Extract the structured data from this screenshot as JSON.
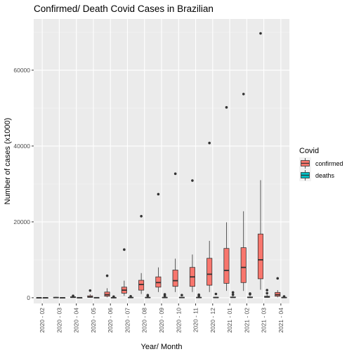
{
  "chart_data": {
    "type": "boxplot",
    "title": "Confirmed/ Death Covid Cases in Brazilian",
    "xlabel": "Year/ Month",
    "ylabel": "Number of cases (x1000)",
    "ylim": [
      -1500,
      73500
    ],
    "yticks": [
      0,
      20000,
      40000,
      60000
    ],
    "grid": true,
    "legend": {
      "title": "Covid",
      "position": "right",
      "entries": [
        {
          "name": "confirmed",
          "color": "#F8766D"
        },
        {
          "name": "deaths",
          "color": "#00BFC4"
        }
      ]
    },
    "categories": [
      "2020 - 02",
      "2020 - 03",
      "2020 - 04",
      "2020 - 05",
      "2020 - 06",
      "2020 - 07",
      "2020 - 08",
      "2020 - 09",
      "2020 - 10",
      "2020 - 11",
      "2020 - 12",
      "2021 - 01",
      "2021 - 02",
      "2021 - 03",
      "2021 - 04"
    ],
    "series": [
      {
        "name": "confirmed",
        "color": "#F8766D",
        "boxes": [
          {
            "min": 0,
            "q1": 0,
            "median": 0,
            "q3": 0,
            "max": 0,
            "outliers": []
          },
          {
            "min": 0,
            "q1": 20,
            "median": 50,
            "q3": 100,
            "max": 250,
            "outliers": []
          },
          {
            "min": 0,
            "q1": 50,
            "median": 120,
            "q3": 250,
            "max": 500,
            "outliers": [
              500
            ]
          },
          {
            "min": 0,
            "q1": 100,
            "median": 200,
            "q3": 500,
            "max": 900,
            "outliers": [
              1900
            ]
          },
          {
            "min": 100,
            "q1": 400,
            "median": 800,
            "q3": 1500,
            "max": 2500,
            "outliers": [
              5800
            ]
          },
          {
            "min": 500,
            "q1": 1200,
            "median": 2000,
            "q3": 2800,
            "max": 4500,
            "outliers": [
              12700
            ]
          },
          {
            "min": 1000,
            "q1": 2000,
            "median": 3500,
            "q3": 4600,
            "max": 6500,
            "outliers": [
              21500
            ]
          },
          {
            "min": 1500,
            "q1": 2800,
            "median": 4000,
            "q3": 5500,
            "max": 8000,
            "outliers": [
              27300
            ]
          },
          {
            "min": 1500,
            "q1": 3000,
            "median": 4500,
            "q3": 7300,
            "max": 10300,
            "outliers": [
              32700
            ]
          },
          {
            "min": 1500,
            "q1": 3000,
            "median": 5500,
            "q3": 8000,
            "max": 11400,
            "outliers": [
              30900
            ]
          },
          {
            "min": 1500,
            "q1": 3300,
            "median": 6200,
            "q3": 10400,
            "max": 15000,
            "outliers": [
              40800
            ]
          },
          {
            "min": 1800,
            "q1": 3800,
            "median": 7200,
            "q3": 13000,
            "max": 19900,
            "outliers": [
              50200
            ]
          },
          {
            "min": 1800,
            "q1": 4000,
            "median": 8000,
            "q3": 13200,
            "max": 22800,
            "outliers": [
              53700
            ]
          },
          {
            "min": 2100,
            "q1": 5000,
            "median": 10000,
            "q3": 16800,
            "max": 31000,
            "outliers": [
              69700
            ]
          },
          {
            "min": 100,
            "q1": 400,
            "median": 800,
            "q3": 1400,
            "max": 2000,
            "outliers": [
              5100
            ]
          }
        ]
      },
      {
        "name": "deaths",
        "color": "#00BFC4",
        "boxes": [
          {
            "min": 0,
            "q1": 0,
            "median": 0,
            "q3": 0,
            "max": 0,
            "outliers": []
          },
          {
            "min": 0,
            "q1": 0,
            "median": 0,
            "q3": 10,
            "max": 20,
            "outliers": []
          },
          {
            "min": 0,
            "q1": 0,
            "median": 10,
            "q3": 20,
            "max": 40,
            "outliers": []
          },
          {
            "min": 0,
            "q1": 10,
            "median": 20,
            "q3": 30,
            "max": 60,
            "outliers": []
          },
          {
            "min": 0,
            "q1": 10,
            "median": 20,
            "q3": 50,
            "max": 100,
            "outliers": [
              300
            ]
          },
          {
            "min": 0,
            "q1": 20,
            "median": 50,
            "q3": 100,
            "max": 200,
            "outliers": [
              400
            ]
          },
          {
            "min": 0,
            "q1": 30,
            "median": 60,
            "q3": 100,
            "max": 200,
            "outliers": [
              500,
              700
            ]
          },
          {
            "min": 0,
            "q1": 30,
            "median": 60,
            "q3": 100,
            "max": 200,
            "outliers": [
              500,
              900
            ]
          },
          {
            "min": 0,
            "q1": 30,
            "median": 60,
            "q3": 100,
            "max": 200,
            "outliers": [
              700
            ]
          },
          {
            "min": 0,
            "q1": 30,
            "median": 60,
            "q3": 100,
            "max": 200,
            "outliers": [
              500,
              800
            ]
          },
          {
            "min": 0,
            "q1": 30,
            "median": 60,
            "q3": 120,
            "max": 250,
            "outliers": [
              1000
            ]
          },
          {
            "min": 0,
            "q1": 50,
            "median": 100,
            "q3": 200,
            "max": 400,
            "outliers": [
              800,
              1400
            ]
          },
          {
            "min": 0,
            "q1": 50,
            "median": 100,
            "q3": 200,
            "max": 400,
            "outliers": [
              900,
              1100
            ]
          },
          {
            "min": 0,
            "q1": 100,
            "median": 200,
            "q3": 400,
            "max": 800,
            "outliers": [
              1200,
              2000
            ]
          },
          {
            "min": 0,
            "q1": 20,
            "median": 50,
            "q3": 100,
            "max": 200,
            "outliers": [
              350
            ]
          }
        ]
      }
    ]
  }
}
